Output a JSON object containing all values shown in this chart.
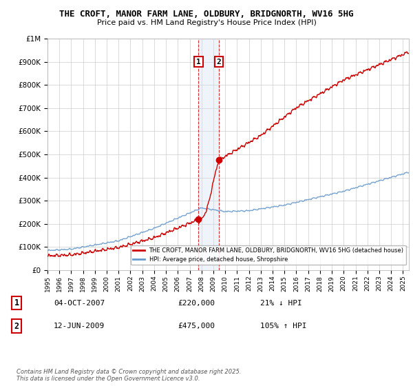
{
  "title": "THE CROFT, MANOR FARM LANE, OLDBURY, BRIDGNORTH, WV16 5HG",
  "subtitle": "Price paid vs. HM Land Registry's House Price Index (HPI)",
  "background_color": "#ffffff",
  "plot_bg_color": "#ffffff",
  "grid_color": "#cccccc",
  "line1_color": "#cc0000",
  "line2_color": "#6699cc",
  "shade_color": "#d0e0f0",
  "t1_year": 2007.75,
  "t2_year": 2009.45,
  "t1_price": 220000,
  "t2_price": 475000,
  "legend1": "THE CROFT, MANOR FARM LANE, OLDBURY, BRIDGNORTH, WV16 5HG (detached house)",
  "legend2": "HPI: Average price, detached house, Shropshire",
  "table_row1": [
    "1",
    "04-OCT-2007",
    "£220,000",
    "21% ↓ HPI"
  ],
  "table_row2": [
    "2",
    "12-JUN-2009",
    "£475,000",
    "105% ↑ HPI"
  ],
  "footer": "Contains HM Land Registry data © Crown copyright and database right 2025.\nThis data is licensed under the Open Government Licence v3.0.",
  "ylim": [
    0,
    1000000
  ],
  "xlim_start": 1995,
  "xlim_end": 2025.5
}
